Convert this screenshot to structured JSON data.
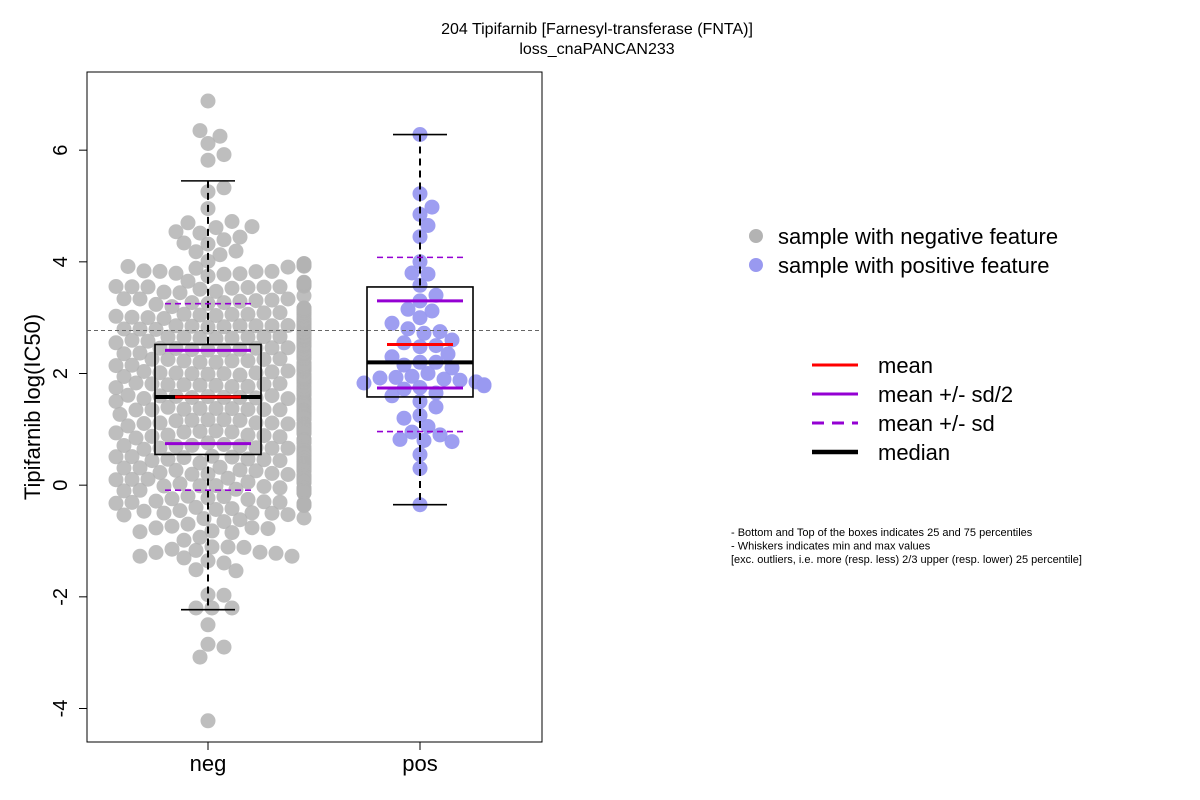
{
  "chart_data": {
    "type": "scatter",
    "title": "204 Tipifarnib [Farnesyl-transferase (FNTA)]",
    "subtitle": "loss_cnaPANCAN233",
    "ylabel": "Tipifarnib log(IC50)",
    "xlabel": "",
    "ylim": [
      -4.6,
      7.4
    ],
    "yticks": [
      -4,
      -2,
      0,
      2,
      4,
      6
    ],
    "yticklabels": [
      "-4",
      "-2",
      "0",
      "2",
      "4",
      "6"
    ],
    "categories": [
      "neg",
      "pos"
    ],
    "reference_line_y": 2.77,
    "grid": false,
    "groups": [
      {
        "name": "neg",
        "color": "#b3b3b3",
        "n_points": 620,
        "min": -2.23,
        "q1": 0.55,
        "median": 1.58,
        "mean": 1.58,
        "q3": 2.52,
        "max": 5.45,
        "sd": 1.67,
        "highlighted_values": [
          6.88,
          6.35,
          6.25,
          6.12,
          5.92,
          5.82,
          -2.5,
          -2.85,
          -2.9,
          -3.08,
          -4.22
        ]
      },
      {
        "name": "pos",
        "color": "#9999f0",
        "n_points": 56,
        "min": -0.35,
        "q1": 1.58,
        "median": 2.2,
        "mean": 2.52,
        "q3": 3.55,
        "max": 6.28,
        "sd": 1.56,
        "values": [
          6.28,
          5.22,
          4.98,
          4.85,
          4.65,
          4.45,
          4.0,
          3.8,
          3.78,
          3.58,
          3.3,
          3.15,
          3.12,
          2.8,
          2.75,
          2.72,
          2.5,
          2.48,
          2.3,
          2.2,
          2.2,
          2.1,
          1.95,
          1.93,
          1.92,
          1.9,
          1.88,
          1.83,
          1.8,
          1.78,
          1.75,
          1.72,
          1.6,
          1.4,
          1.2,
          1.05,
          0.95,
          0.82,
          0.8,
          0.78,
          0.55,
          0.3,
          -0.35,
          2.6,
          2.9,
          3.4,
          2.0,
          1.65,
          1.25,
          2.35,
          2.55,
          3.0,
          2.15,
          1.85,
          1.5,
          0.9
        ]
      }
    ],
    "legend": {
      "placement": "right",
      "points": [
        {
          "label": "sample with negative feature",
          "color": "#b3b3b3"
        },
        {
          "label": "sample with positive feature",
          "color": "#9999f0"
        }
      ],
      "lines": [
        {
          "label": "mean",
          "color": "#ff0000",
          "style": "solid"
        },
        {
          "label": "mean +/- sd/2",
          "color": "#9400d3",
          "style": "solid"
        },
        {
          "label": "mean +/- sd",
          "color": "#9400d3",
          "style": "dashed"
        },
        {
          "label": "median",
          "color": "#000000",
          "style": "solid-thick"
        }
      ]
    },
    "notes": [
      "- Bottom and Top of the boxes indicates 25 and 75 percentiles",
      "- Whiskers indicates min and max values",
      "[exc. outliers, i.e. more (resp. less) 2/3 upper (resp. lower) 25 percentile]"
    ]
  }
}
